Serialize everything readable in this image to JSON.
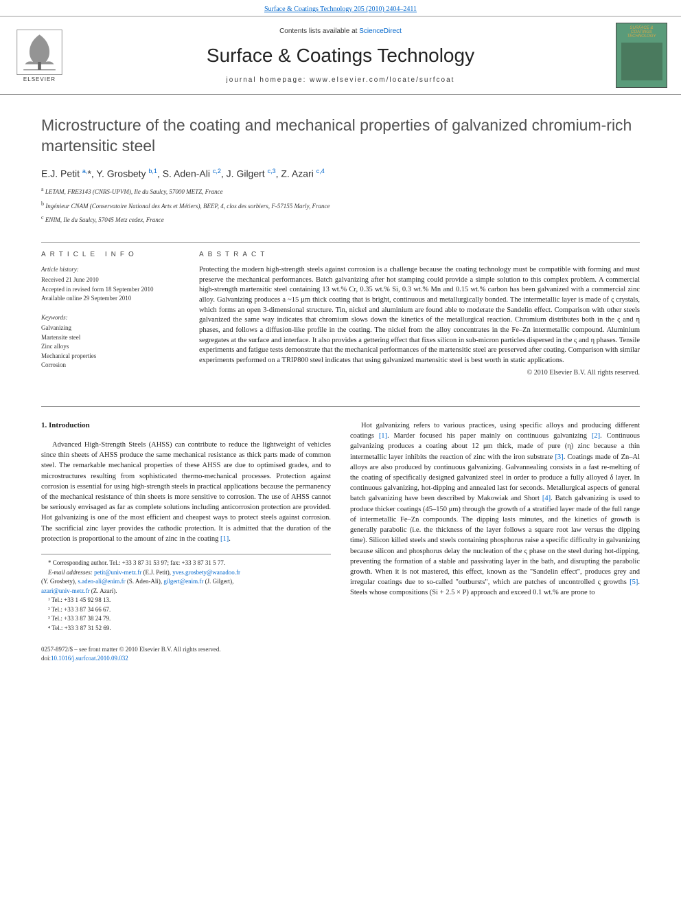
{
  "top_link": "Surface & Coatings Technology 205 (2010) 2404–2411",
  "header": {
    "contents_prefix": "Contents lists available at ",
    "contents_link": "ScienceDirect",
    "journal_name": "Surface & Coatings Technology",
    "homepage": "journal homepage: www.elsevier.com/locate/surfcoat",
    "publisher": "ELSEVIER",
    "cover_title": "SURFACE & COATINGS TECHNOLOGY"
  },
  "article": {
    "title": "Microstructure of the coating and mechanical properties of galvanized chromium-rich martensitic steel",
    "authors_html": "E.J. Petit <sup>a,</sup>*, Y. Grosbety <sup>b,1</sup>, S. Aden-Ali <sup>c,2</sup>, J. Gilgert <sup>c,3</sup>, Z. Azari <sup>c,4</sup>",
    "affiliations": [
      {
        "sup": "a",
        "text": "LETAM, FRE3143 (CNRS-UPVM), Ile du Saulcy, 57000 METZ, France"
      },
      {
        "sup": "b",
        "text": "Ingénieur CNAM (Conservatoire National des Arts et Métiers), BEEP, 4, clos des sorbiers, F-57155 Marly, France"
      },
      {
        "sup": "c",
        "text": "ENIM, Ile du Saulcy, 57045 Metz cedex, France"
      }
    ]
  },
  "info": {
    "label": "ARTICLE INFO",
    "history_heading": "Article history:",
    "history": [
      "Received 21 June 2010",
      "Accepted in revised form 18 September 2010",
      "Available online 29 September 2010"
    ],
    "keywords_heading": "Keywords:",
    "keywords": [
      "Galvanizing",
      "Martensite steel",
      "Zinc alloys",
      "Mechanical properties",
      "Corrosion"
    ]
  },
  "abstract": {
    "label": "ABSTRACT",
    "text": "Protecting the modern high-strength steels against corrosion is a challenge because the coating technology must be compatible with forming and must preserve the mechanical performances. Batch galvanizing after hot stamping could provide a simple solution to this complex problem. A commercial high-strength martensitic steel containing 13 wt.% Cr, 0.35 wt.% Si, 0.3 wt.% Mn and 0.15 wt.% carbon has been galvanized with a commercial zinc alloy. Galvanizing produces a ~15 μm thick coating that is bright, continuous and metallurgically bonded. The intermetallic layer is made of ς crystals, which forms an open 3-dimensional structure. Tin, nickel and aluminium are found able to moderate the Sandelin effect. Comparison with other steels galvanized the same way indicates that chromium slows down the kinetics of the metallurgical reaction. Chromium distributes both in the ς and η phases, and follows a diffusion-like profile in the coating. The nickel from the alloy concentrates in the Fe–Zn intermetallic compound. Aluminium segregates at the surface and interface. It also provides a gettering effect that fixes silicon in sub-micron particles dispersed in the ς and η phases. Tensile experiments and fatigue tests demonstrate that the mechanical performances of the martensitic steel are preserved after coating. Comparison with similar experiments performed on a TRIP800 steel indicates that using galvanized martensitic steel is best worth in static applications.",
    "copyright": "© 2010 Elsevier B.V. All rights reserved."
  },
  "intro": {
    "heading": "1. Introduction",
    "col1_p1": "Advanced High-Strength Steels (AHSS) can contribute to reduce the lightweight of vehicles since thin sheets of AHSS produce the same mechanical resistance as thick parts made of common steel. The remarkable mechanical properties of these AHSS are due to optimised grades, and to microstructures resulting from sophisticated thermo-mechanical processes. Protection against corrosion is essential for using high-strength steels in practical applications because the permanency of the mechanical resistance of thin sheets is more sensitive to corrosion. The use of AHSS cannot be seriously envisaged as far as complete solutions including anticorrosion protection are provided. Hot galvanizing is one of the most efficient and cheapest ways to protect steels against corrosion. The sacrificial zinc layer provides the cathodic protection. It is admitted that the duration of the protection is proportional to the amount of zinc in the coating ",
    "col1_ref1": "[1]",
    "col2_p1_a": "Hot galvanizing refers to various practices, using specific alloys and producing different coatings ",
    "col2_ref1": "[1]",
    "col2_p1_b": ". Marder focused his paper mainly on continuous galvanizing ",
    "col2_ref2": "[2]",
    "col2_p1_c": ". Continuous galvanizing produces a coating about 12 μm thick, made of pure (η) zinc because a thin intermetallic layer inhibits the reaction of zinc with the iron substrate ",
    "col2_ref3": "[3]",
    "col2_p1_d": ". Coatings made of Zn–Al alloys are also produced by continuous galvanizing. Galvannealing consists in a fast re-melting of the coating of specifically designed galvanized steel in order to produce a fully alloyed δ layer. In continuous galvanizing, hot-dipping and annealed last for seconds. Metallurgical aspects of general batch galvanizing have been described by Makowiak and Short ",
    "col2_ref4": "[4]",
    "col2_p1_e": ". Batch galvanizing is used to produce thicker coatings (45–150 μm) through the growth of a stratified layer made of the full range of intermetallic Fe–Zn compounds. The dipping lasts minutes, and the kinetics of growth is generally parabolic (i.e. the thickness of the layer follows a square root law versus the dipping time). Silicon killed steels and steels containing phosphorus raise a specific difficulty in galvanizing because silicon and phosphorus delay the nucleation of the ς phase on the steel during hot-dipping, preventing the formation of a stable and passivating layer in the bath, and disrupting the parabolic growth. When it is not mastered, this effect, known as the \"Sandelin effect\", produces grey and irregular coatings due to so-called \"outbursts\", which are patches of uncontrolled ς growths ",
    "col2_ref5": "[5]",
    "col2_p1_f": ". Steels whose compositions (Si + 2.5 × P) approach and exceed 0.1 wt.% are prone to"
  },
  "footnotes": {
    "corresponding": "* Corresponding author. Tel.: +33 3 87 31 53 97; fax: +33 3 87 31 5 77.",
    "email_label": "E-mail addresses:",
    "emails": [
      {
        "addr": "petit@univ-metz.fr",
        "who": " (E.J. Petit), "
      },
      {
        "addr": "yves.grosbety@wanadoo.fr",
        "who": ""
      }
    ],
    "emails_line2_prefix": "(Y. Grosbety), ",
    "emails_line2": [
      {
        "addr": "s.aden-ali@enim.fr",
        "who": " (S. Aden-Ali), "
      },
      {
        "addr": "gilgert@enim.fr",
        "who": " (J. Gilgert),"
      }
    ],
    "emails_line3": [
      {
        "addr": "azari@univ-metz.fr",
        "who": " (Z. Azari)."
      }
    ],
    "tels": [
      "¹ Tel.: +33 1 45 92 98 13.",
      "² Tel.: +33 3 87 34 66 67.",
      "³ Tel.: +33 3 87 38 24 79.",
      "⁴ Tel.: +33 3 87 31 52 69."
    ]
  },
  "footer": {
    "issn": "0257-8972/$ – see front matter © 2010 Elsevier B.V. All rights reserved.",
    "doi_prefix": "doi:",
    "doi": "10.1016/j.surfcoat.2010.09.032"
  },
  "colors": {
    "link": "#0066cc",
    "text": "#1a1a1a",
    "heading_gray": "#505050",
    "border": "#888888",
    "cover_bg": "#5a9b7a",
    "cover_title": "#d4a84a"
  }
}
